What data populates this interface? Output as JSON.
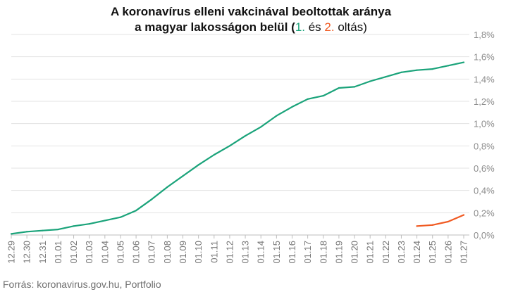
{
  "title": {
    "line1": "A koronavírus elleni vakcinával beoltottak aránya",
    "line2_prefix": "a magyar lakosságon belül (",
    "first_label": "1.",
    "connector": " és ",
    "second_label": "2.",
    "suffix": " oltás)"
  },
  "source": "Forrás: koronavirus.gov.hu, Portfolio",
  "colors": {
    "first_dose": "#1aa37a",
    "second_dose": "#f05a22"
  },
  "chart_data": {
    "type": "line",
    "categories": [
      "12.29",
      "12.30",
      "12.31",
      "01.01",
      "01.02",
      "01.03",
      "01.04",
      "01.05",
      "01.06",
      "01.07",
      "01.08",
      "01.09",
      "01.10",
      "01.11",
      "01.12",
      "01.13",
      "01.14",
      "01.15",
      "01.16",
      "01.17",
      "01.18",
      "01.19",
      "01.20",
      "01.21",
      "01.22",
      "01.23",
      "01.24",
      "01.25",
      "01.26",
      "01.27"
    ],
    "series": [
      {
        "key": "first_dose",
        "values": [
          0.01,
          0.03,
          0.04,
          0.05,
          0.08,
          0.1,
          0.13,
          0.16,
          0.22,
          0.32,
          0.43,
          0.53,
          0.63,
          0.72,
          0.8,
          0.89,
          0.97,
          1.07,
          1.15,
          1.22,
          1.25,
          1.32,
          1.33,
          1.38,
          1.42,
          1.46,
          1.48,
          1.49,
          1.52,
          1.55
        ]
      },
      {
        "key": "second_dose",
        "values": [
          null,
          null,
          null,
          null,
          null,
          null,
          null,
          null,
          null,
          null,
          null,
          null,
          null,
          null,
          null,
          null,
          null,
          null,
          null,
          null,
          null,
          null,
          null,
          null,
          null,
          null,
          0.08,
          0.09,
          0.12,
          0.18
        ]
      }
    ],
    "y_ticks": [
      "0,0%",
      "0,2%",
      "0,4%",
      "0,6%",
      "0,8%",
      "1,0%",
      "1,2%",
      "1,4%",
      "1,6%",
      "1,8%"
    ],
    "ylim": [
      0,
      1.8
    ],
    "y_axis_position": "right",
    "grid": true
  }
}
